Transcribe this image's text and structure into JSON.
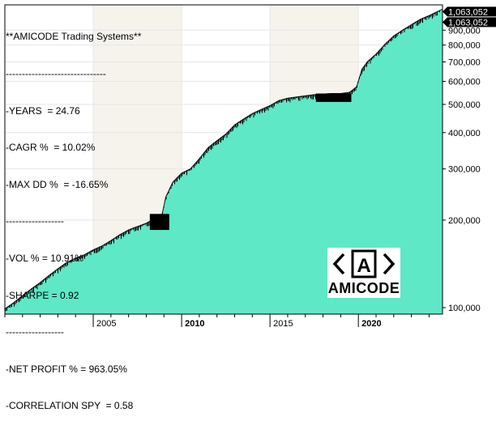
{
  "stats": {
    "lines": [
      "**AMICODE Trading Systems**",
      "-------------------------------",
      "-YEARS  = 24.76",
      "-CAGR %  = 10.02%",
      "-MAX DD %  = -16.65%",
      "------------------",
      "-VOL % = 10.91%",
      "-SHARPE = 0.92",
      "------------------",
      "-NET PROFIT % = 963.05%",
      "-CORRELATION SPY  = 0.58"
    ]
  },
  "logo": {
    "symbol": "A",
    "text": "AMICODE"
  },
  "colors": {
    "area_fill": "#5ee8c6",
    "area_fill_light": "#7ef5d6",
    "shade_band": "#f5f3ec",
    "drawdown": "#000000",
    "tag_bg": "#000000",
    "border": "#000000"
  },
  "chart_data": {
    "type": "area",
    "yscale": "log",
    "ylim": [
      95000,
      1100000
    ],
    "xlim": [
      2000.0,
      2024.76
    ],
    "y_ticks": [
      100000,
      200000,
      300000,
      400000,
      500000,
      600000,
      700000,
      800000,
      900000
    ],
    "y_tick_labels": [
      "100,000",
      "200,000",
      "300,000",
      "400,000",
      "500,000",
      "600,000",
      "700,000",
      "800,000",
      "900,000"
    ],
    "x_ticks": [
      2005,
      2010,
      2015,
      2020
    ],
    "x_tick_labels": [
      "2005",
      "2010",
      "2015",
      "2020"
    ],
    "x_bold_ticks": [
      "2010",
      "2020"
    ],
    "shaded_years": [
      [
        2005,
        2010
      ],
      [
        2015,
        2020
      ]
    ],
    "last_value_labels": [
      "1,063,052",
      "1,063,052"
    ],
    "series": [
      {
        "x": [
          2000.0,
          2000.5,
          2001.0,
          2001.5,
          2002.0,
          2002.5,
          2003.0,
          2003.5,
          2004.0,
          2004.5,
          2005.0,
          2005.5,
          2006.0,
          2006.5,
          2007.0,
          2007.5,
          2008.0,
          2008.5,
          2008.9,
          2009.1,
          2009.5,
          2010.0,
          2010.5,
          2011.0,
          2011.5,
          2012.0,
          2012.5,
          2013.0,
          2013.5,
          2014.0,
          2014.5,
          2015.0,
          2015.5,
          2016.0,
          2016.5,
          2017.0,
          2017.5,
          2018.0,
          2018.5,
          2019.0,
          2019.5,
          2019.9,
          2020.2,
          2020.5,
          2021.0,
          2021.5,
          2022.0,
          2022.5,
          2023.0,
          2023.5,
          2024.0,
          2024.76
        ],
        "values": [
          99000,
          104000,
          110000,
          116000,
          122000,
          129000,
          136000,
          143000,
          148000,
          152000,
          158000,
          163000,
          170000,
          178000,
          185000,
          190000,
          195000,
          203000,
          210000,
          240000,
          270000,
          290000,
          300000,
          325000,
          355000,
          375000,
          395000,
          425000,
          445000,
          465000,
          480000,
          495000,
          515000,
          525000,
          530000,
          535000,
          540000,
          543000,
          545000,
          545000,
          550000,
          575000,
          660000,
          700000,
          745000,
          805000,
          860000,
          900000,
          940000,
          980000,
          1010000,
          1063052
        ]
      }
    ]
  }
}
